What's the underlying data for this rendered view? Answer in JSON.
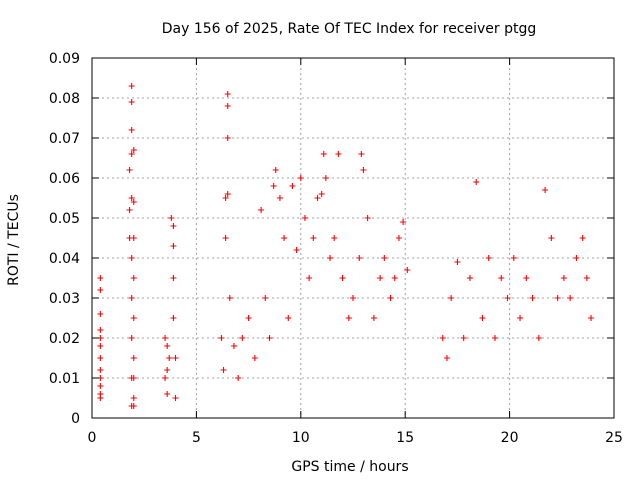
{
  "chart_data": {
    "type": "scatter",
    "title": "Day 156 of 2025, Rate Of TEC Index for receiver ptgg",
    "xlabel": "GPS time / hours",
    "ylabel": "ROTI / TECUs",
    "xlim": [
      0,
      25
    ],
    "ylim": [
      0,
      0.09
    ],
    "xticks": [
      "0",
      "5",
      "10",
      "15",
      "20",
      "25"
    ],
    "yticks": [
      "0",
      "0.01",
      "0.02",
      "0.03",
      "0.04",
      "0.05",
      "0.06",
      "0.07",
      "0.08",
      "0.09"
    ],
    "grid": true,
    "marker": "+",
    "color": "#ff0000",
    "series": [
      {
        "x": [
          0.4,
          0.4,
          0.4,
          0.4,
          0.4,
          0.4,
          0.4,
          0.4,
          0.4,
          0.4,
          0.4,
          0.4,
          1.8,
          1.8,
          1.8,
          1.9,
          1.9,
          1.9,
          1.9,
          1.9,
          1.9,
          1.9,
          1.9,
          1.9,
          1.9,
          2.0,
          2.0,
          2.0,
          2.0,
          2.0,
          2.0,
          2.0,
          2.0,
          2.0,
          3.5,
          3.5,
          3.6,
          3.6,
          3.6,
          3.7,
          3.8,
          3.9,
          3.9,
          3.9,
          3.9,
          4.0,
          4.0,
          6.2,
          6.3,
          6.4,
          6.4,
          6.5,
          6.5,
          6.5,
          6.5,
          6.6,
          6.8,
          7.0,
          7.2,
          7.5,
          7.8,
          8.1,
          8.3,
          8.5,
          8.7,
          8.8,
          9.0,
          9.2,
          9.4,
          9.6,
          9.8,
          10.0,
          10.2,
          10.4,
          10.6,
          10.8,
          11.0,
          11.1,
          11.2,
          11.4,
          11.6,
          11.8,
          12.0,
          12.3,
          12.5,
          12.8,
          12.9,
          13.0,
          13.2,
          13.5,
          13.8,
          14.0,
          14.3,
          14.5,
          14.7,
          14.9,
          15.1,
          16.8,
          17.0,
          17.2,
          17.5,
          17.8,
          18.1,
          18.4,
          18.7,
          19.0,
          19.3,
          19.6,
          19.9,
          20.2,
          20.5,
          20.8,
          21.1,
          21.4,
          21.7,
          22.0,
          22.3,
          22.6,
          22.9,
          23.2,
          23.5,
          23.7,
          23.9
        ],
        "y": [
          0.035,
          0.032,
          0.026,
          0.022,
          0.02,
          0.018,
          0.015,
          0.012,
          0.01,
          0.008,
          0.006,
          0.005,
          0.062,
          0.052,
          0.045,
          0.083,
          0.079,
          0.072,
          0.066,
          0.055,
          0.04,
          0.03,
          0.02,
          0.01,
          0.003,
          0.067,
          0.054,
          0.045,
          0.035,
          0.025,
          0.015,
          0.01,
          0.005,
          0.003,
          0.02,
          0.01,
          0.018,
          0.012,
          0.006,
          0.015,
          0.05,
          0.048,
          0.043,
          0.035,
          0.025,
          0.015,
          0.005,
          0.02,
          0.012,
          0.055,
          0.045,
          0.081,
          0.078,
          0.07,
          0.056,
          0.03,
          0.018,
          0.01,
          0.02,
          0.025,
          0.015,
          0.052,
          0.03,
          0.02,
          0.058,
          0.062,
          0.055,
          0.045,
          0.025,
          0.058,
          0.042,
          0.06,
          0.05,
          0.035,
          0.045,
          0.055,
          0.056,
          0.066,
          0.06,
          0.04,
          0.045,
          0.066,
          0.035,
          0.025,
          0.03,
          0.04,
          0.066,
          0.062,
          0.05,
          0.025,
          0.035,
          0.04,
          0.03,
          0.035,
          0.045,
          0.049,
          0.037,
          0.02,
          0.015,
          0.03,
          0.039,
          0.02,
          0.035,
          0.059,
          0.025,
          0.04,
          0.02,
          0.035,
          0.03,
          0.04,
          0.025,
          0.035,
          0.03,
          0.02,
          0.057,
          0.045,
          0.03,
          0.035,
          0.03,
          0.04,
          0.045,
          0.035,
          0.025
        ]
      }
    ]
  }
}
